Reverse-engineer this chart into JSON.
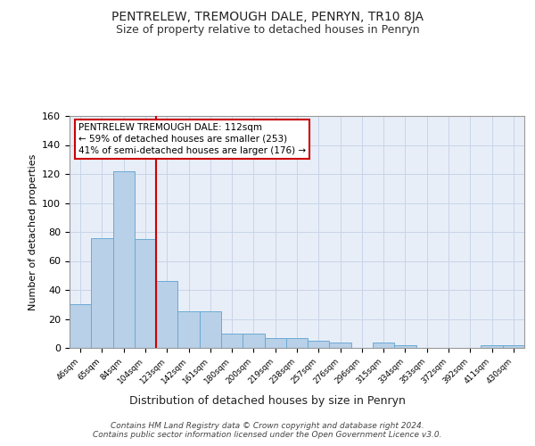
{
  "title": "PENTRELEW, TREMOUGH DALE, PENRYN, TR10 8JA",
  "subtitle": "Size of property relative to detached houses in Penryn",
  "xlabel": "Distribution of detached houses by size in Penryn",
  "ylabel": "Number of detached properties",
  "categories": [
    "46sqm",
    "65sqm",
    "84sqm",
    "104sqm",
    "123sqm",
    "142sqm",
    "161sqm",
    "180sqm",
    "200sqm",
    "219sqm",
    "238sqm",
    "257sqm",
    "276sqm",
    "296sqm",
    "315sqm",
    "334sqm",
    "353sqm",
    "372sqm",
    "392sqm",
    "411sqm",
    "430sqm"
  ],
  "values": [
    30,
    76,
    122,
    75,
    46,
    25,
    25,
    10,
    10,
    7,
    7,
    5,
    4,
    0,
    4,
    2,
    0,
    0,
    0,
    2,
    2
  ],
  "bar_color": "#b8d0e8",
  "bar_edge_color": "#6aaad4",
  "red_line_x": 3.5,
  "red_line_color": "#cc0000",
  "annotation_text": "PENTRELEW TREMOUGH DALE: 112sqm\n← 59% of detached houses are smaller (253)\n41% of semi-detached houses are larger (176) →",
  "annotation_box_color": "#ffffff",
  "annotation_box_edge": "#cc0000",
  "ylim": [
    0,
    160
  ],
  "yticks": [
    0,
    20,
    40,
    60,
    80,
    100,
    120,
    140,
    160
  ],
  "footer": "Contains HM Land Registry data © Crown copyright and database right 2024.\nContains public sector information licensed under the Open Government Licence v3.0.",
  "background_color": "#e8eef8",
  "grid_color": "#c8d4e8",
  "title_fontsize": 10,
  "subtitle_fontsize": 9
}
